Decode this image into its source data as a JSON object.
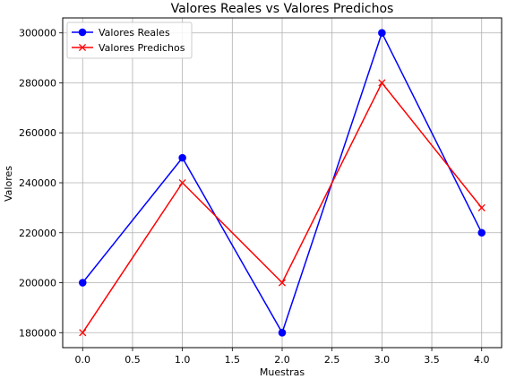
{
  "chart_data": {
    "type": "line",
    "title": "Valores Reales vs Valores Predichos",
    "xlabel": "Muestras",
    "ylabel": "Valores",
    "x": [
      0,
      1,
      2,
      3,
      4
    ],
    "xlim": [
      -0.2,
      4.2
    ],
    "ylim": [
      174000,
      306000
    ],
    "xticks": [
      0.0,
      0.5,
      1.0,
      1.5,
      2.0,
      2.5,
      3.0,
      3.5,
      4.0
    ],
    "xtick_labels": [
      "0.0",
      "0.5",
      "1.0",
      "1.5",
      "2.0",
      "2.5",
      "3.0",
      "3.5",
      "4.0"
    ],
    "yticks": [
      180000,
      200000,
      220000,
      240000,
      260000,
      280000,
      300000
    ],
    "ytick_labels": [
      "180000",
      "200000",
      "220000",
      "240000",
      "260000",
      "280000",
      "300000"
    ],
    "grid": true,
    "legend_position": "upper-left",
    "series": [
      {
        "name": "Valores Reales",
        "values": [
          200000,
          250000,
          180000,
          300000,
          220000
        ],
        "color": "#0000ff",
        "marker": "circle"
      },
      {
        "name": "Valores Predichos",
        "values": [
          180000,
          240000,
          200000,
          280000,
          230000
        ],
        "color": "#ff0000",
        "marker": "x"
      }
    ]
  }
}
